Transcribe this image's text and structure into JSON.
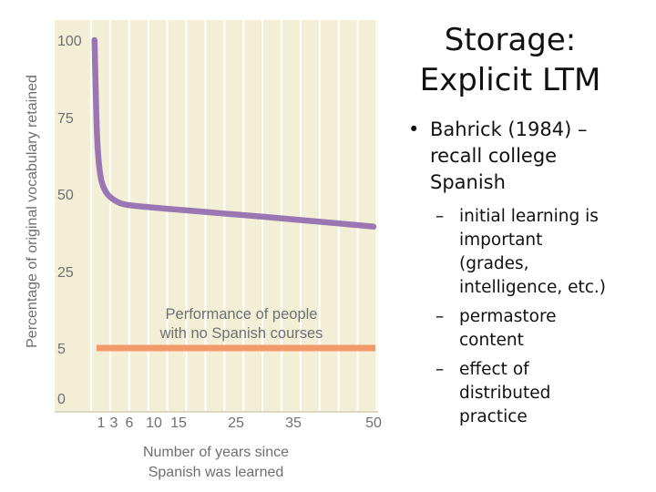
{
  "slide": {
    "title_lines": [
      "Storage:",
      "Explicit LTM"
    ],
    "bullet": {
      "lines": [
        "Bahrick (1984) –",
        "recall college",
        "Spanish"
      ],
      "subbullets": [
        {
          "lines": [
            "initial learning is",
            "important",
            "(grades,",
            "intelligence, etc.)"
          ]
        },
        {
          "lines": [
            "permastore",
            "content"
          ]
        },
        {
          "lines": [
            "effect of",
            "distributed",
            "practice"
          ]
        }
      ]
    }
  },
  "chart_data": {
    "type": "line",
    "title": "",
    "xlabel": [
      "Number of years since",
      "Spanish was learned"
    ],
    "ylabel": "Percentage of original vocabulary retained",
    "x_ticks": [
      1,
      3,
      6,
      10,
      15,
      25,
      35,
      50
    ],
    "x_tick_labels": [
      "1",
      "3",
      "6",
      "10",
      "15",
      "25",
      "35",
      "50"
    ],
    "y_tick_labels": [
      "100",
      "75",
      "50",
      "25",
      "5",
      "0"
    ],
    "xlim": [
      0,
      50
    ],
    "grid": true,
    "series": [
      {
        "name": "",
        "color": "#9a77b3",
        "points": [
          [
            0.6,
            100
          ],
          [
            0.8,
            85
          ],
          [
            1.0,
            70
          ],
          [
            1.3,
            61
          ],
          [
            1.7,
            55
          ],
          [
            2.2,
            52
          ],
          [
            3.0,
            49.5
          ],
          [
            4.5,
            47.5
          ],
          [
            6,
            46.5
          ],
          [
            10,
            45.8
          ],
          [
            15,
            45.0
          ],
          [
            25,
            43.5
          ],
          [
            35,
            42.0
          ],
          [
            50,
            39.5
          ]
        ]
      },
      {
        "name": "Performance of people with no Spanish courses",
        "color": "#f29a6a",
        "points": [
          [
            0,
            5
          ],
          [
            50,
            5
          ]
        ]
      }
    ],
    "annotation_lines": [
      "Performance of people",
      "with no Spanish courses"
    ],
    "colors": {
      "plot_bg": "#f3efd6",
      "grid": "#ffffff",
      "axis_text": "#6d6f71"
    }
  }
}
